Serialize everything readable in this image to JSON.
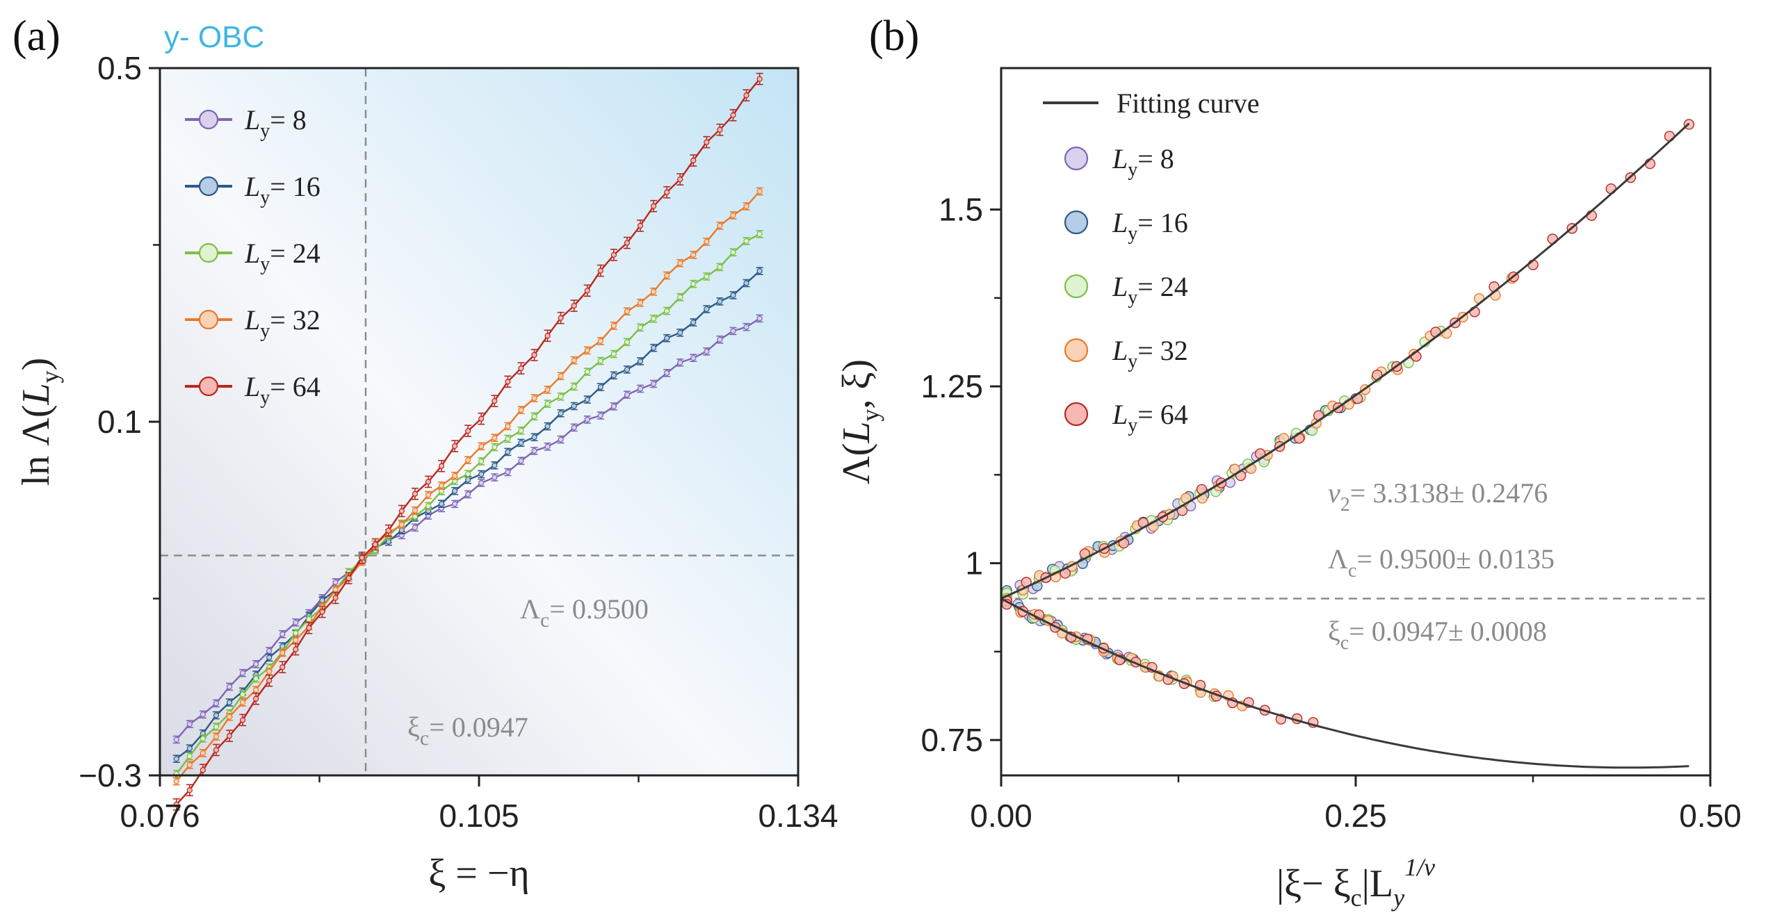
{
  "colors": {
    "Ly8": "#7e66b5",
    "Ly8_fill": "#d9d1ee",
    "Ly16": "#2e5a86",
    "Ly16_fill": "#b5cde6",
    "Ly24": "#7bbf45",
    "Ly24_fill": "#e1f2d3",
    "Ly32": "#ea7a2c",
    "Ly32_fill": "#fad3b6",
    "Ly64": "#b8281e",
    "Ly64_fill": "#f6b8b4",
    "fit": "#3a3a3a",
    "dash": "#8c8c8c"
  },
  "chart_data": [
    {
      "panel": "(a)",
      "type": "line",
      "tag": "y- OBC",
      "title": "",
      "xlabel_main": "ξ = −η",
      "ylabel_pre": "ln Λ(",
      "ylabel_var": "L",
      "ylabel_sub": "y",
      "ylabel_post": ")",
      "xlim": [
        0.076,
        0.134
      ],
      "ylim": [
        -0.3,
        0.5
      ],
      "xticks": [
        0.076,
        0.105,
        0.134
      ],
      "xtick_labels": [
        "0.076",
        "0.105",
        "0.134"
      ],
      "yticks": [
        -0.3,
        0.1,
        0.5
      ],
      "ytick_labels": [
        "−0.3",
        "0.1",
        "0.5"
      ],
      "crossing_x": 0.0947,
      "crossing_y": -0.0513,
      "annotations": {
        "lambda_c_pre": "Λ",
        "lambda_c_sub": "c",
        "lambda_c_val": "= 0.9500",
        "xi_c_pre": "ξ",
        "xi_c_sub": "c",
        "xi_c_val": "= 0.0947"
      },
      "legend": [
        {
          "pre": "L",
          "sub": "y",
          "val": "= 8"
        },
        {
          "pre": "L",
          "sub": "y",
          "val": "= 16"
        },
        {
          "pre": "L",
          "sub": "y",
          "val": "= 24"
        },
        {
          "pre": "L",
          "sub": "y",
          "val": "= 32"
        },
        {
          "pre": "L",
          "sub": "y",
          "val": "= 64"
        }
      ],
      "series": [
        {
          "name": "Ly = 8",
          "color_key": "Ly8",
          "x_start": 0.0775,
          "x_end": 0.1305,
          "y_start": -0.2595,
          "y_end": 0.2185
        },
        {
          "name": "Ly = 16",
          "color_key": "Ly16",
          "x_start": 0.0775,
          "x_end": 0.1305,
          "y_start": -0.2835,
          "y_end": 0.2675
        },
        {
          "name": "Ly = 24",
          "color_key": "Ly24",
          "x_start": 0.0775,
          "x_end": 0.1305,
          "y_start": -0.2955,
          "y_end": 0.3145
        },
        {
          "name": "Ly = 32",
          "color_key": "Ly32",
          "x_start": 0.0775,
          "x_end": 0.1305,
          "y_start": -0.3085,
          "y_end": 0.3605
        },
        {
          "name": "Ly = 64",
          "color_key": "Ly64",
          "x_start": 0.0775,
          "x_end": 0.1305,
          "y_start": -0.3335,
          "y_end": 0.4855
        }
      ]
    },
    {
      "panel": "(b)",
      "type": "scatter",
      "title": "",
      "xlabel_pre": "|ξ− ξ",
      "xlabel_sub": "c",
      "xlabel_mid": "|L",
      "xlabel_sub2": "y",
      "xlabel_sup": "1/ν",
      "ylabel_pre": "Λ(",
      "ylabel_var": "L",
      "ylabel_sub": "y",
      "ylabel_post": ", ξ)",
      "xlim": [
        0.0,
        0.5
      ],
      "ylim": [
        0.7,
        1.7
      ],
      "xticks": [
        0.0,
        0.25,
        0.5
      ],
      "xtick_labels": [
        "0.00",
        "0.25",
        "0.50"
      ],
      "yticks": [
        0.75,
        1.0,
        1.25,
        1.5
      ],
      "ytick_labels": [
        "0.75",
        "1",
        "1.25",
        "1.5"
      ],
      "lambda_c_line": 0.95,
      "fit_label": "Fitting curve",
      "fit_upper": {
        "a": 0.95,
        "b": 0.9,
        "c": 1.0
      },
      "fit_lower": {
        "a": 0.95,
        "b": -1.08,
        "c": 1.22
      },
      "annotations": {
        "nu_pre": "ν",
        "nu_sub": "2",
        "nu_val": "= 3.3138± 0.2476",
        "lambda_pre": "Λ",
        "lambda_sub": "c",
        "lambda_val": "= 0.9500± 0.0135",
        "xi_pre": "ξ",
        "xi_sub": "c",
        "xi_val": "= 0.0947± 0.0008"
      },
      "legend": [
        {
          "pre": "L",
          "sub": "y",
          "val": "= 8"
        },
        {
          "pre": "L",
          "sub": "y",
          "val": "= 16"
        },
        {
          "pre": "L",
          "sub": "y",
          "val": "= 24"
        },
        {
          "pre": "L",
          "sub": "y",
          "val": "= 32"
        },
        {
          "pre": "L",
          "sub": "y",
          "val": "= 64"
        }
      ],
      "series": [
        {
          "name": "Ly = 8",
          "color_key": "Ly8",
          "x_max_upper": 0.18,
          "x_max_lower": 0.09
        },
        {
          "name": "Ly = 16",
          "color_key": "Ly16",
          "x_max_upper": 0.25,
          "x_max_lower": 0.12
        },
        {
          "name": "Ly = 24",
          "color_key": "Ly24",
          "x_max_upper": 0.31,
          "x_max_lower": 0.15
        },
        {
          "name": "Ly = 32",
          "color_key": "Ly32",
          "x_max_upper": 0.36,
          "x_max_lower": 0.17
        },
        {
          "name": "Ly = 64",
          "color_key": "Ly64",
          "x_max_upper": 0.485,
          "x_max_lower": 0.22
        }
      ]
    }
  ]
}
